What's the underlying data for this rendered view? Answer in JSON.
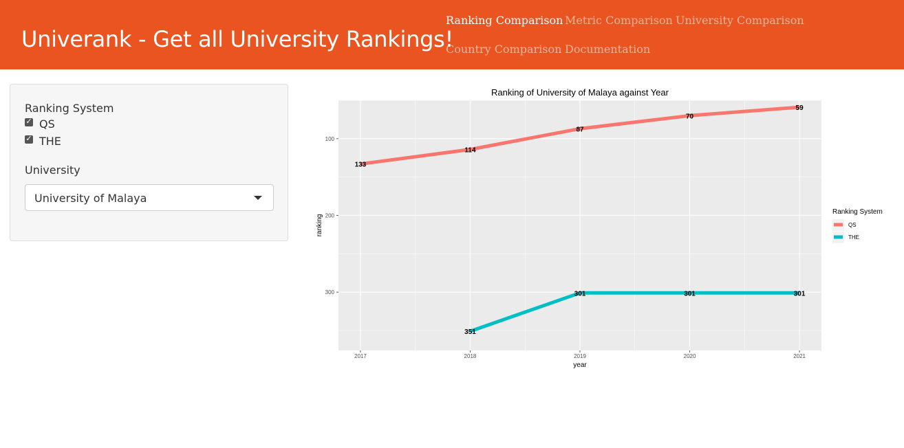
{
  "header": {
    "brand": "Univerank - Get all University Rankings!",
    "nav": [
      {
        "label": "Ranking Comparison",
        "active": true
      },
      {
        "label": "Metric Comparison",
        "active": false
      },
      {
        "label": "University Comparison",
        "active": false
      },
      {
        "label": "Country Comparison",
        "active": false
      },
      {
        "label": "Documentation",
        "active": false
      }
    ]
  },
  "sidebar": {
    "ranking_system_label": "Ranking System",
    "checkboxes": [
      {
        "label": "QS",
        "checked": true
      },
      {
        "label": "THE",
        "checked": true
      }
    ],
    "university_label": "University",
    "university_selected": "University of Malaya"
  },
  "colors": {
    "accent": "#e95420",
    "qs": "#f8766d",
    "the": "#00bfc4",
    "panel_bg": "#ebebeb"
  },
  "chart_data": {
    "type": "line",
    "title": "Ranking of University of Malaya against Year",
    "xlabel": "year",
    "ylabel": "ranking",
    "x": [
      2017,
      2018,
      2019,
      2020,
      2021
    ],
    "y_reversed": true,
    "ylim": [
      50,
      376
    ],
    "yticks": [
      100,
      200,
      300
    ],
    "legend_title": "Ranking System",
    "legend_position": "right",
    "grid": true,
    "series": [
      {
        "name": "QS",
        "color": "#f8766d",
        "x": [
          2017,
          2018,
          2019,
          2020,
          2021
        ],
        "values": [
          133,
          114,
          87,
          70,
          59
        ]
      },
      {
        "name": "THE",
        "color": "#00bfc4",
        "x": [
          2018,
          2019,
          2020,
          2021
        ],
        "values": [
          351,
          301,
          301,
          301
        ]
      }
    ]
  }
}
